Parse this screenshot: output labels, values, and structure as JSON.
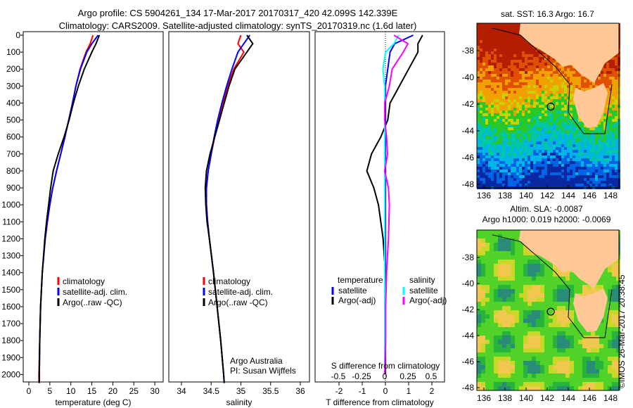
{
  "title_line1": "Argo profile: CS 5904261_134 17-Mar-2017 20170317_420 42.099S 142.339E",
  "title_line2": "Climatology: CARS2009. Satellite-adjusted climatology: synTS_20170319.nc (1.6d later)",
  "colors": {
    "climatology": "#ff0000",
    "satellite": "#0000ff",
    "argo": "#000000",
    "sal_satellite": "#00ffff",
    "sal_argo": "#ff00ff",
    "land": "#ffc896"
  },
  "chart_data": [
    {
      "type": "line",
      "name": "temperature",
      "xlabel": "temperature (deg C)",
      "xlim": [
        -1,
        31
      ],
      "ylim": [
        0,
        2050
      ],
      "xticks": [
        0,
        5,
        10,
        15,
        20,
        25,
        30
      ],
      "yticks": [
        0,
        100,
        200,
        300,
        400,
        500,
        600,
        700,
        800,
        900,
        1000,
        1100,
        1200,
        1300,
        1400,
        1500,
        1600,
        1700,
        1800,
        1900,
        2000
      ],
      "depth": [
        0,
        50,
        100,
        200,
        300,
        400,
        500,
        600,
        700,
        800,
        900,
        1000,
        1100,
        1200,
        1400,
        1600,
        1800,
        2000,
        2050
      ],
      "series": [
        {
          "name": "climatology",
          "values": [
            15.3,
            14.6,
            13.6,
            12.2,
            11.2,
            10.4,
            9.5,
            8.6,
            7.6,
            6.6,
            5.7,
            5.0,
            4.4,
            3.9,
            3.2,
            2.8,
            2.6,
            2.4,
            2.4
          ]
        },
        {
          "name": "satellite-adj. clim.",
          "values": [
            16.5,
            15.0,
            13.8,
            12.3,
            11.2,
            10.4,
            9.5,
            8.6,
            7.6,
            6.6,
            5.7,
            5.0,
            4.4,
            3.9,
            3.2,
            2.8,
            2.6,
            2.5,
            2.5
          ]
        },
        {
          "name": "Argo(..raw -QC)",
          "values": [
            16.8,
            16.0,
            15.0,
            13.2,
            11.8,
            10.6,
            9.6,
            8.4,
            7.0,
            5.8,
            5.2,
            4.7,
            4.2,
            3.8,
            3.2,
            2.8,
            2.6,
            2.5,
            2.5
          ]
        }
      ],
      "legend": [
        "climatology",
        "satellite-adj. clim.",
        "Argo(..raw -QC)"
      ]
    },
    {
      "type": "line",
      "name": "salinity",
      "xlabel": "salinity",
      "xlim": [
        33.85,
        36.1
      ],
      "xticks": [
        34,
        34.5,
        35,
        35.5,
        36
      ],
      "depth": [
        0,
        50,
        100,
        200,
        300,
        400,
        500,
        600,
        700,
        800,
        900,
        1000,
        1100,
        1200,
        1400,
        1600,
        1800,
        2000,
        2050
      ],
      "series": [
        {
          "name": "climatology",
          "values": [
            35.0,
            34.95,
            35.05,
            34.88,
            34.78,
            34.7,
            34.63,
            34.56,
            34.5,
            34.45,
            34.42,
            34.42,
            34.44,
            34.47,
            34.54,
            34.6,
            34.66,
            34.71,
            34.72
          ]
        },
        {
          "name": "satellite-adj. clim.",
          "values": [
            35.15,
            35.05,
            34.95,
            34.85,
            34.76,
            34.68,
            34.61,
            34.55,
            34.5,
            34.45,
            34.42,
            34.42,
            34.44,
            34.47,
            34.54,
            34.6,
            34.66,
            34.71,
            34.72
          ]
        },
        {
          "name": "Argo(..raw -QC)",
          "values": [
            35.1,
            35.2,
            35.1,
            34.9,
            34.8,
            34.72,
            34.64,
            34.56,
            34.48,
            34.42,
            34.4,
            34.41,
            34.43,
            34.47,
            34.54,
            34.6,
            34.66,
            34.71,
            34.72
          ]
        }
      ],
      "legend": [
        "climatology",
        "satellite-adj. clim.",
        "Argo(..raw -QC)"
      ],
      "annotation": [
        "Argo Australia",
        "PI: Susan Wijffels"
      ]
    },
    {
      "type": "line",
      "name": "differences",
      "xlabel": "T difference from climatology",
      "x2label": "S difference from climatology",
      "xlim": [
        -2.6,
        2.8
      ],
      "xticks": [
        -2,
        -1,
        0,
        1,
        2
      ],
      "x2ticks": [
        -0.5,
        -0.25,
        0,
        0.25,
        0.5
      ],
      "depth": [
        0,
        50,
        100,
        200,
        300,
        400,
        500,
        600,
        700,
        800,
        900,
        1000,
        1200,
        1400,
        1600,
        1800,
        2000
      ],
      "series": [
        {
          "name": "T satellite",
          "values": [
            1.2,
            0.4,
            0.2,
            0.1,
            0.0,
            0.0,
            0.0,
            0.0,
            0.0,
            0.0,
            0.0,
            0.0,
            0.0,
            0.0,
            0.0,
            0.0,
            0.0
          ]
        },
        {
          "name": "T Argo(-adj)",
          "values": [
            1.6,
            1.4,
            1.4,
            1.0,
            0.6,
            0.2,
            0.1,
            -0.2,
            -0.6,
            -0.8,
            -0.5,
            -0.3,
            -0.1,
            0.0,
            0.0,
            0.0,
            0.0
          ]
        },
        {
          "name": "S satellite",
          "values": [
            0.15,
            0.1,
            0.01,
            -0.02,
            0.0,
            0.0,
            0.0,
            0.0,
            0.0,
            0.0,
            0.0,
            0.0,
            0.0,
            0.0,
            0.0,
            0.0,
            0.0
          ]
        },
        {
          "name": "S Argo(-adj)",
          "values": [
            0.1,
            0.25,
            0.2,
            0.08,
            0.05,
            0.0,
            0.0,
            0.02,
            0.03,
            0.0,
            0.04,
            0.05,
            0.04,
            0.02,
            0.01,
            0.01,
            0.0
          ]
        }
      ],
      "legend_titles": [
        "temperature",
        "salinity"
      ],
      "legend": [
        "satellite",
        "Argo(-adj)",
        "satellite",
        "Argo(-adj)"
      ]
    }
  ],
  "map_top": {
    "title": "sat. SST: 16.3 Argo: 16.7",
    "lat_ticks": [
      "-38",
      "-40",
      "-42",
      "-44",
      "-46",
      "-48"
    ],
    "lon_ticks": [
      "136",
      "138",
      "140",
      "142",
      "144",
      "146",
      "148"
    ]
  },
  "map_bottom": {
    "title1": "Altim. SLA: -0.0087",
    "title2": "Argo h1000: 0.019 h2000: -0.0069",
    "lat_ticks": [
      "-38",
      "-40",
      "-42",
      "-44",
      "-46",
      "-48"
    ],
    "lon_ticks": [
      "136",
      "138",
      "140",
      "142",
      "144",
      "146",
      "148"
    ]
  },
  "credit": "©IMOS 26-Mar-2017 20:38:45"
}
